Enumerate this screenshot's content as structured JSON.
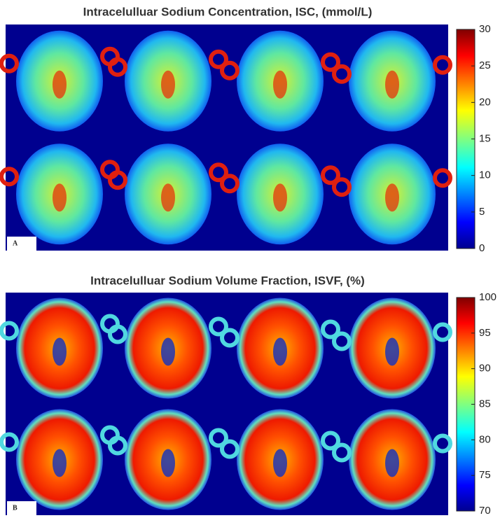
{
  "panels": [
    {
      "title": "Intracelulluar Sodium Concentration, ISC, (mmol/L)",
      "label": "A",
      "colorbar": {
        "ticks": [
          0,
          5,
          10,
          15,
          20,
          25,
          30
        ]
      }
    },
    {
      "title": "Intracelulluar Sodium Volume Fraction, ISVF, (%)",
      "label": "B",
      "colorbar": {
        "ticks": [
          70,
          75,
          80,
          85,
          90,
          95,
          100
        ]
      }
    }
  ]
}
